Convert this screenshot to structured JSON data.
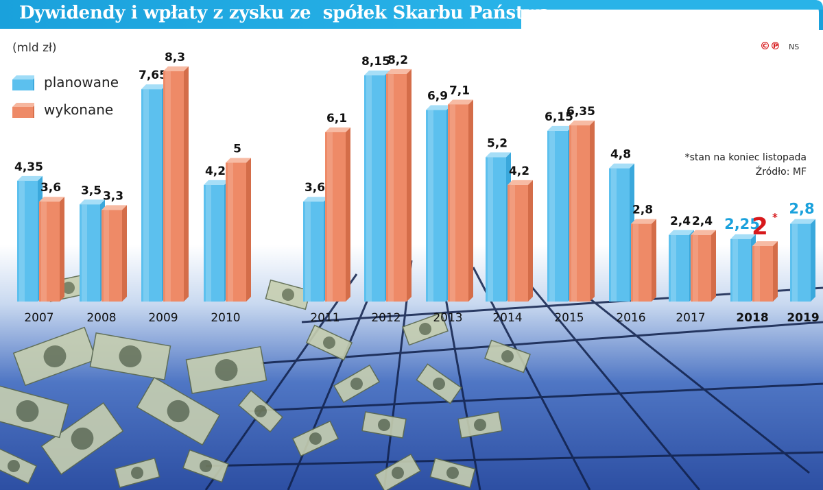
{
  "title": "Dywidendy i wpłaty z zysku ze  spółek Skarbu Państwa",
  "unit_label": "(mld zł)",
  "legend": {
    "planned": "planowane",
    "actual": "wykonane"
  },
  "notes": {
    "line1": "*stan na koniec listopada",
    "line2": "Źródło: MF"
  },
  "logo": {
    "mark": "©℗",
    "initials": "NS"
  },
  "colors": {
    "title_bg": "#1aa1dc",
    "planned": "#5cc0ee",
    "actual": "#ee8a67",
    "highlight_blue": "#1aa1dc",
    "highlight_red": "#d7191c"
  },
  "chart_data": {
    "type": "bar",
    "title": "Dywidendy i wpłaty z zysku ze  spółek Skarbu Państwa",
    "ylabel": "(mld zł)",
    "xlabel": "",
    "categories": [
      "2007",
      "2008",
      "2009",
      "2010",
      "2011",
      "2012",
      "2013",
      "2014",
      "2015",
      "2016",
      "2017",
      "2018",
      "2019"
    ],
    "series": [
      {
        "name": "planowane",
        "values": [
          4.35,
          3.5,
          7.65,
          4.2,
          3.6,
          8.15,
          6.9,
          5.2,
          6.15,
          4.8,
          2.4,
          2.25,
          2.8
        ],
        "labels": [
          "4,35",
          "3,5",
          "7,65",
          "4,2",
          "3,6",
          "8,15",
          "6,9",
          "5,2",
          "6,15",
          "4,8",
          "2,4",
          "2,25",
          "2,8"
        ]
      },
      {
        "name": "wykonane",
        "values": [
          3.6,
          3.3,
          8.3,
          5,
          6.1,
          8.2,
          7.1,
          4.2,
          6.35,
          2.8,
          2.4,
          2,
          null
        ],
        "labels": [
          "3,6",
          "3,3",
          "8,3",
          "5",
          "6,1",
          "8,2",
          "7,1",
          "4,2",
          "6,35",
          "2,8",
          "2,4",
          "2*",
          ""
        ]
      }
    ],
    "bold_categories": [
      "2018",
      "2019"
    ],
    "ylim": [
      0,
      8.3
    ],
    "grid": false,
    "legend_position": "top-left"
  }
}
